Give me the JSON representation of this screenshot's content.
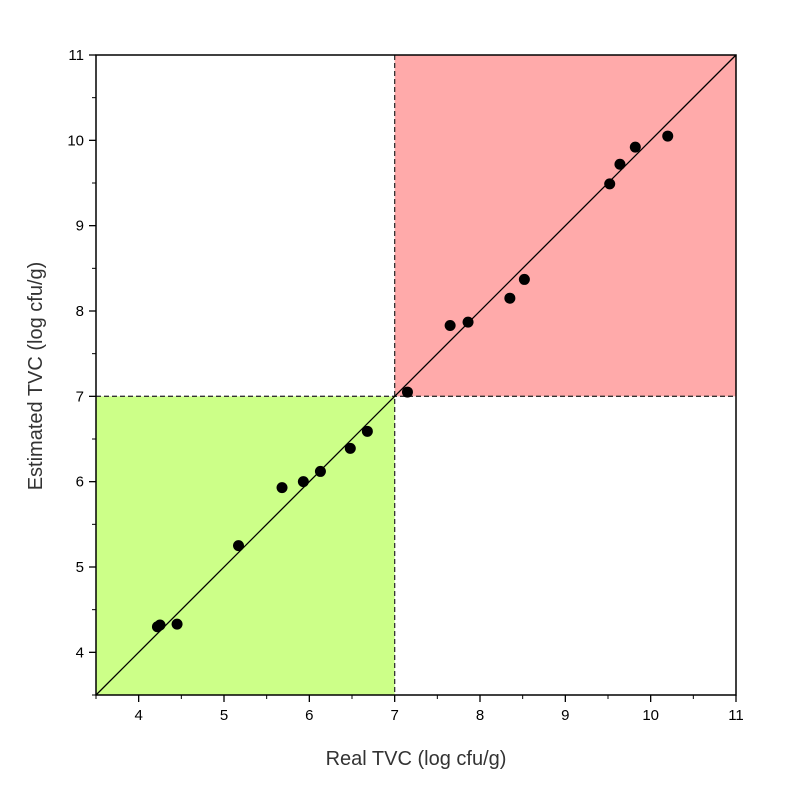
{
  "chart_data": {
    "type": "scatter",
    "title": "",
    "xlabel": "Real TVC (log cfu/g)",
    "ylabel": "Estimated TVC (log cfu/g)",
    "xlim": [
      3.5,
      11
    ],
    "ylim": [
      3.5,
      11
    ],
    "x_ticks": [
      4,
      5,
      6,
      7,
      8,
      9,
      10,
      11
    ],
    "y_ticks": [
      4,
      5,
      6,
      7,
      8,
      9,
      10,
      11
    ],
    "threshold": 7,
    "identity_line": true,
    "grid": false,
    "regions": [
      {
        "x": [
          3.5,
          7
        ],
        "y": [
          3.5,
          7
        ],
        "color": "#ccff88"
      },
      {
        "x": [
          7,
          11
        ],
        "y": [
          7,
          11
        ],
        "color": "#ffaaaa"
      }
    ],
    "marker_color": "#000000",
    "points": [
      {
        "x": 4.22,
        "y": 4.3
      },
      {
        "x": 4.25,
        "y": 4.32
      },
      {
        "x": 4.45,
        "y": 4.33
      },
      {
        "x": 5.17,
        "y": 5.25
      },
      {
        "x": 5.68,
        "y": 5.93
      },
      {
        "x": 5.93,
        "y": 6.0
      },
      {
        "x": 6.13,
        "y": 6.12
      },
      {
        "x": 6.48,
        "y": 6.39
      },
      {
        "x": 6.68,
        "y": 6.59
      },
      {
        "x": 7.15,
        "y": 7.05
      },
      {
        "x": 7.65,
        "y": 7.83
      },
      {
        "x": 7.86,
        "y": 7.87
      },
      {
        "x": 8.35,
        "y": 8.15
      },
      {
        "x": 8.52,
        "y": 8.37
      },
      {
        "x": 9.52,
        "y": 9.49
      },
      {
        "x": 9.64,
        "y": 9.72
      },
      {
        "x": 9.82,
        "y": 9.92
      },
      {
        "x": 10.2,
        "y": 10.05
      }
    ]
  }
}
